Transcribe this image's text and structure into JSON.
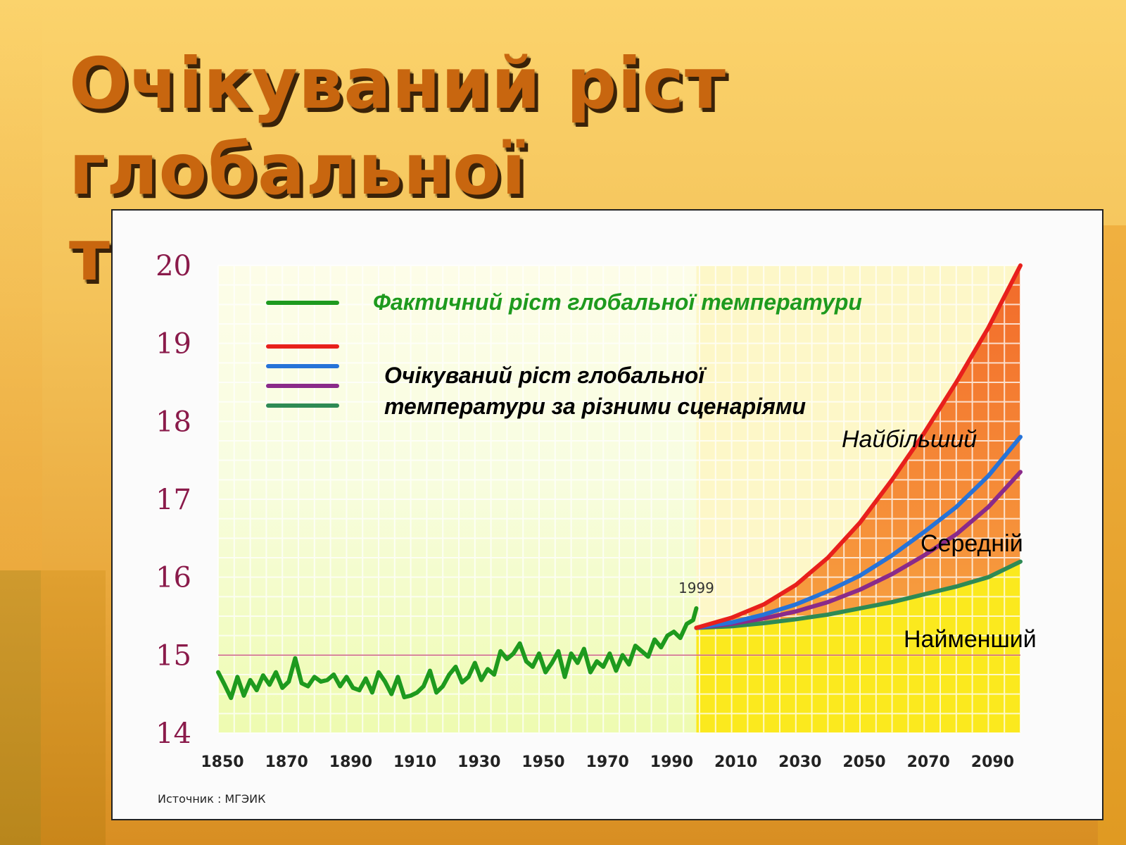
{
  "slide": {
    "title_line1": "Очікуваний ріст",
    "title_line2": "глобальної температури",
    "source": "Источник : МГЭИК"
  },
  "colors": {
    "actual": "#1e9a1e",
    "high": "#e8201c",
    "medium_high": "#2673d8",
    "medium_low": "#8a2a8a",
    "low": "#2e8a55",
    "observed_bg": "#eefbb0",
    "low_zone": "#fbe91e",
    "high_zone": "#f26a2a",
    "axis_text": "#8a1a4a"
  },
  "legend": {
    "actual_label": "Фактичний ріст глобальної температури",
    "scenarios_label_line1": "Очікуваний ріст глобальної",
    "scenarios_label_line2": "температури за різними сценаріями"
  },
  "scenario_labels": {
    "high": "Найбільший",
    "medium": "Середній",
    "low": "Найменший"
  },
  "chart_data": {
    "type": "line",
    "title": "",
    "xlabel": "",
    "ylabel": "",
    "xlim": [
      1850,
      2100
    ],
    "ylim": [
      14,
      20
    ],
    "grid": true,
    "x_ticks": [
      1850,
      1870,
      1890,
      1910,
      1930,
      1950,
      1970,
      1990,
      2010,
      2030,
      2050,
      2070,
      2090
    ],
    "y_ticks": [
      14,
      15,
      16,
      17,
      18,
      19,
      20
    ],
    "reference_line": 15,
    "annotation": {
      "text": "1999",
      "x": 1999,
      "y": 15.6
    },
    "observed_series": {
      "x": [
        1850,
        1852,
        1854,
        1856,
        1858,
        1860,
        1862,
        1864,
        1866,
        1868,
        1870,
        1872,
        1874,
        1876,
        1878,
        1880,
        1882,
        1884,
        1886,
        1888,
        1890,
        1892,
        1894,
        1896,
        1898,
        1900,
        1902,
        1904,
        1906,
        1908,
        1910,
        1912,
        1914,
        1916,
        1918,
        1920,
        1922,
        1924,
        1926,
        1928,
        1930,
        1932,
        1934,
        1936,
        1938,
        1940,
        1942,
        1944,
        1946,
        1948,
        1950,
        1952,
        1954,
        1956,
        1958,
        1960,
        1962,
        1964,
        1966,
        1968,
        1970,
        1972,
        1974,
        1976,
        1978,
        1980,
        1982,
        1984,
        1986,
        1988,
        1990,
        1992,
        1994,
        1996,
        1998,
        1999
      ],
      "y": [
        14.78,
        14.62,
        14.45,
        14.72,
        14.48,
        14.68,
        14.55,
        14.74,
        14.62,
        14.78,
        14.58,
        14.66,
        14.96,
        14.64,
        14.6,
        14.72,
        14.66,
        14.68,
        14.75,
        14.6,
        14.72,
        14.58,
        14.55,
        14.7,
        14.52,
        14.78,
        14.66,
        14.5,
        14.72,
        14.46,
        14.48,
        14.52,
        14.6,
        14.8,
        14.52,
        14.6,
        14.75,
        14.85,
        14.65,
        14.72,
        14.9,
        14.68,
        14.82,
        14.75,
        15.05,
        14.95,
        15.02,
        15.15,
        14.92,
        14.85,
        15.02,
        14.78,
        14.9,
        15.05,
        14.72,
        15.02,
        14.9,
        15.08,
        14.78,
        14.92,
        14.85,
        15.02,
        14.8,
        15.0,
        14.88,
        15.12,
        15.05,
        14.98,
        15.2,
        15.1,
        15.25,
        15.3,
        15.22,
        15.4,
        15.45,
        15.6
      ]
    },
    "x": [
      1999,
      2010,
      2020,
      2030,
      2040,
      2050,
      2060,
      2070,
      2080,
      2090,
      2100
    ],
    "series": [
      {
        "name": "Найбільший",
        "color_key": "high",
        "values": [
          15.35,
          15.48,
          15.65,
          15.9,
          16.25,
          16.7,
          17.25,
          17.85,
          18.5,
          19.2,
          20.0
        ]
      },
      {
        "name": "Середній",
        "color_key": "medium_high",
        "values": [
          15.35,
          15.42,
          15.52,
          15.65,
          15.82,
          16.02,
          16.28,
          16.58,
          16.9,
          17.3,
          17.8
        ]
      },
      {
        "color_key": "medium_low",
        "values": [
          15.35,
          15.4,
          15.47,
          15.56,
          15.68,
          15.84,
          16.04,
          16.28,
          16.55,
          16.9,
          17.35
        ]
      },
      {
        "name": "Найменший",
        "color_key": "low",
        "values": [
          15.35,
          15.37,
          15.41,
          15.46,
          15.52,
          15.6,
          15.68,
          15.78,
          15.88,
          16.0,
          16.2
        ]
      }
    ]
  }
}
